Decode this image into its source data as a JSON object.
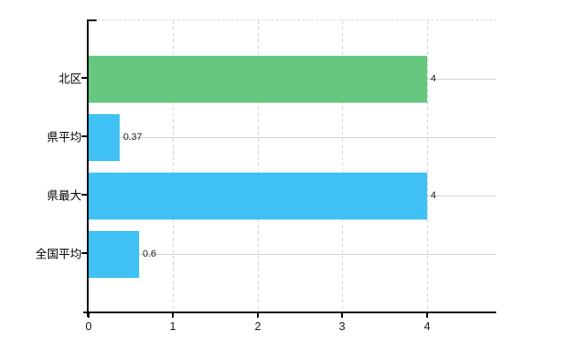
{
  "chart_data": {
    "type": "bar",
    "orientation": "horizontal",
    "title": "",
    "xlabel": "",
    "ylabel": "",
    "categories": [
      "北区",
      "県平均",
      "県最大",
      "全国平均"
    ],
    "values": [
      4,
      0.37,
      4,
      0.6
    ],
    "value_labels": [
      "4",
      "0.37",
      "4",
      "0.6"
    ],
    "bar_colors": [
      "#65c87e",
      "#3fc2f3",
      "#3fc2f3",
      "#3fc2f3"
    ],
    "x_tick_labels": [
      "0",
      "1",
      "2",
      "3",
      "4"
    ],
    "x_tick_values": [
      0,
      1,
      2,
      3,
      4
    ],
    "xlim": [
      0,
      4.82
    ],
    "grid": true,
    "legend": false,
    "colors": {
      "bar_green": "#65c87e",
      "bar_blue": "#3fc2f3",
      "grid_vertical": "#d4d4d4",
      "grid_horizontal": "#ccd5c9",
      "axis": "#000000",
      "tick_label": "#1a1a1a"
    }
  }
}
